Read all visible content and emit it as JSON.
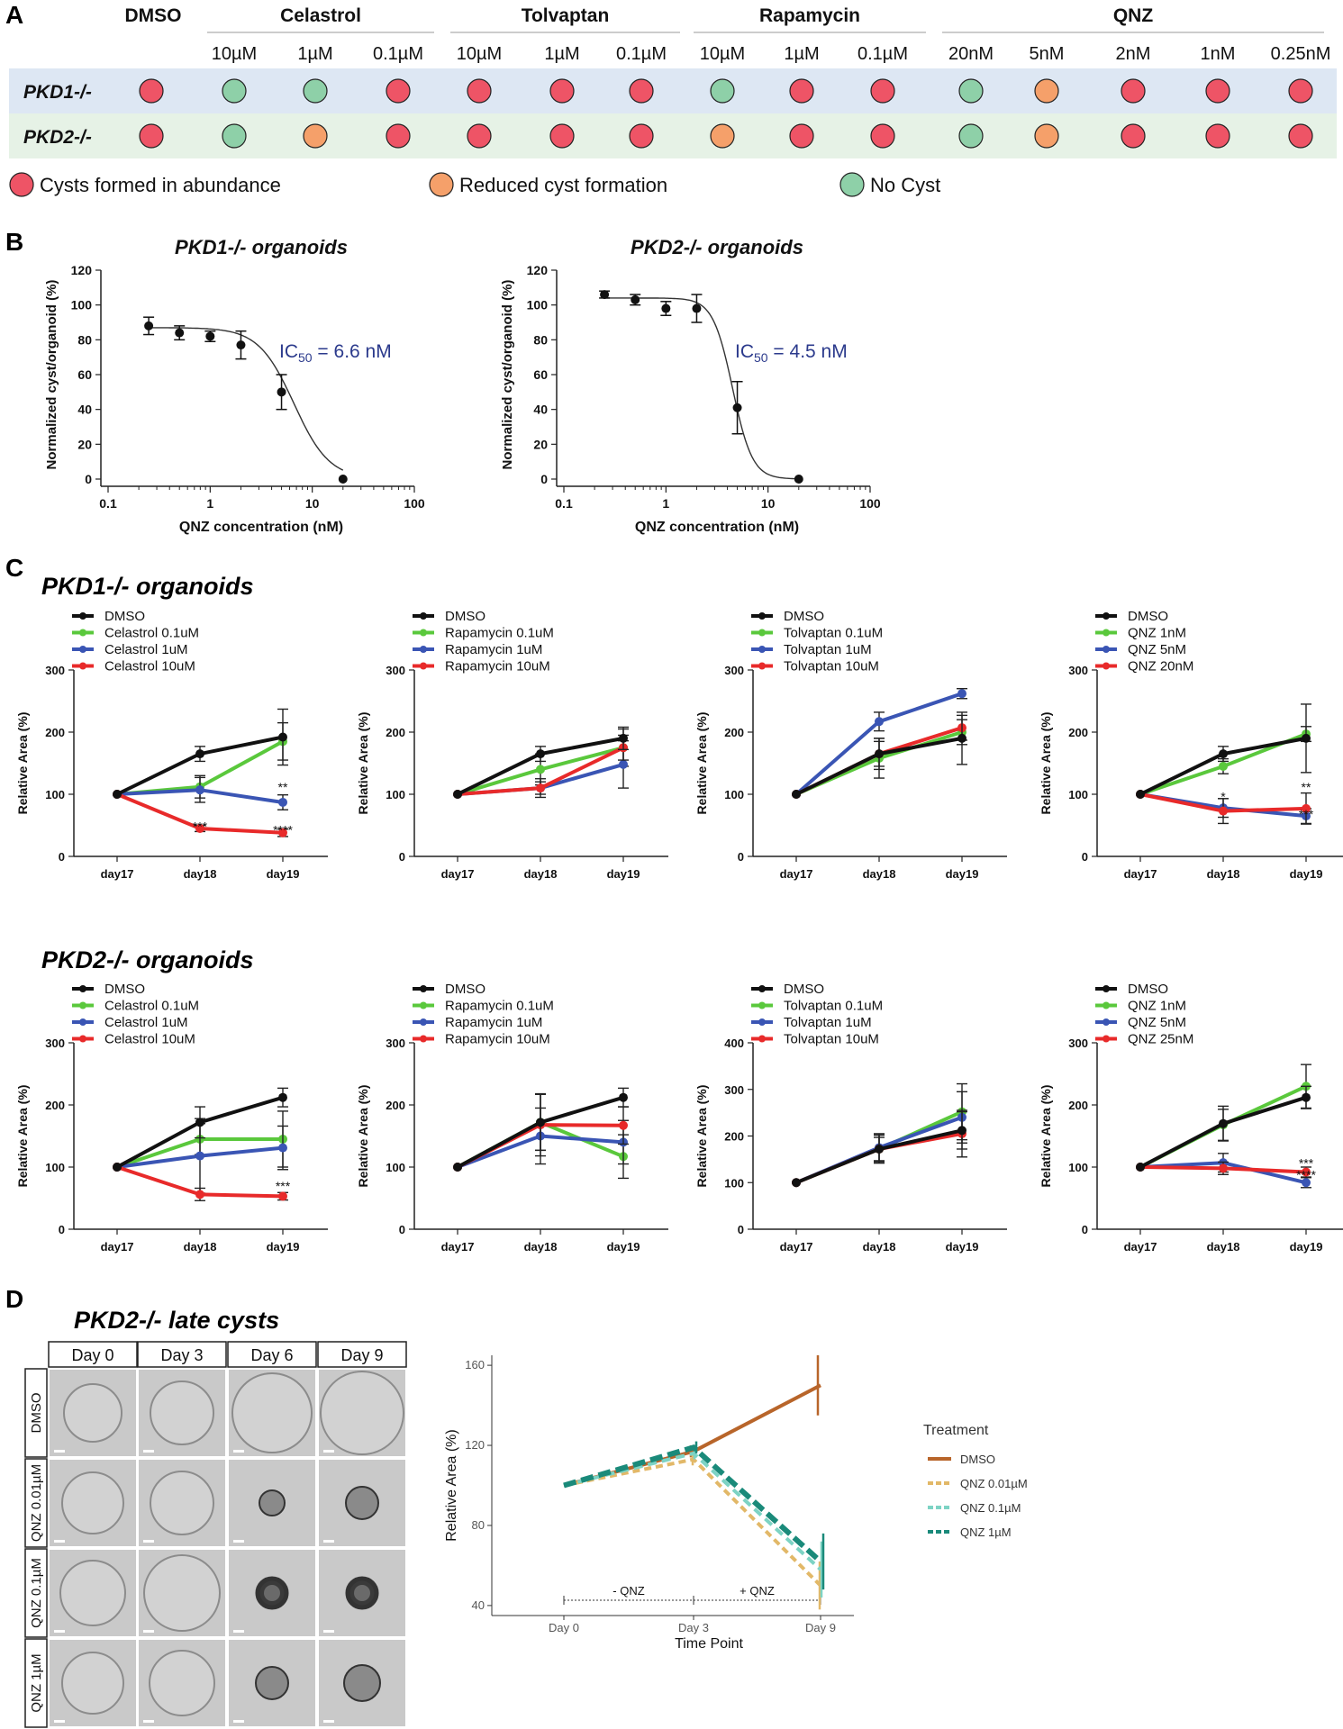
{
  "panels": {
    "A": "A",
    "B": "B",
    "C": "C",
    "D": "D"
  },
  "screen": {
    "dmso_header": "DMSO",
    "drugs": [
      {
        "name": "Celastrol",
        "doses": [
          "10µM",
          "1µM",
          "0.1µM"
        ]
      },
      {
        "name": "Tolvaptan",
        "doses": [
          "10µM",
          "1µM",
          "0.1µM"
        ]
      },
      {
        "name": "Rapamycin",
        "doses": [
          "10µM",
          "1µM",
          "0.1µM"
        ]
      },
      {
        "name": "QNZ",
        "doses": [
          "20nM",
          "5nM",
          "2nM",
          "1nM",
          "0.25nM"
        ]
      }
    ],
    "rows": [
      {
        "label": "PKD1-/-",
        "bg": "#dde7f3",
        "outcomes": [
          "cyst",
          "none",
          "none",
          "cyst",
          "cyst",
          "cyst",
          "cyst",
          "none",
          "cyst",
          "cyst",
          "none",
          "reduced",
          "cyst",
          "cyst",
          "cyst"
        ]
      },
      {
        "label": "PKD2-/-",
        "bg": "#e6f2e6",
        "outcomes": [
          "cyst",
          "none",
          "reduced",
          "cyst",
          "cyst",
          "cyst",
          "cyst",
          "reduced",
          "cyst",
          "cyst",
          "none",
          "reduced",
          "cyst",
          "cyst",
          "cyst"
        ]
      }
    ],
    "outcome_colors": {
      "cyst": "#ee5466",
      "reduced": "#f5a06a",
      "none": "#8ed0a8"
    },
    "legend": [
      {
        "key": "cyst",
        "text": "Cysts formed in abundance"
      },
      {
        "key": "reduced",
        "text": "Reduced cyst formation"
      },
      {
        "key": "none",
        "text": "No Cyst"
      }
    ]
  },
  "ic50": [
    {
      "title": "PKD1-/- organoids",
      "ylabel": "Normalized cyst/organoid (%)",
      "xlabel": "QNZ concentration (nM)",
      "x": [
        0.25,
        0.5,
        1,
        2,
        5,
        20
      ],
      "y": [
        88,
        84,
        82,
        77,
        50,
        0
      ],
      "err": [
        5,
        4,
        3,
        8,
        10,
        0
      ],
      "ic50_value": "6.6",
      "ic50_prefix": "IC",
      "ic50_sub": "50",
      "ic50_suffix": " = 6.6 nM",
      "ytop": 87,
      "ic50_nm": 6.6,
      "hill": 2.5,
      "yticks": [
        "0",
        "20",
        "40",
        "60",
        "80",
        "100",
        "120"
      ],
      "xticks": [
        "0.1",
        "1",
        "10",
        "100"
      ]
    },
    {
      "title": "PKD2-/- organoids",
      "ylabel": "Normalized cyst/organoid (%)",
      "xlabel": "QNZ concentration (nM)",
      "x": [
        0.25,
        0.5,
        1,
        2,
        5,
        20
      ],
      "y": [
        106,
        103,
        98,
        98,
        41,
        0
      ],
      "err": [
        2,
        3,
        4,
        8,
        15,
        0
      ],
      "ic50_value": "4.5",
      "ic50_prefix": "IC",
      "ic50_sub": "50",
      "ic50_suffix": " = 4.5 nM",
      "ytop": 104,
      "ic50_nm": 4.5,
      "hill": 4.5,
      "yticks": [
        "0",
        "20",
        "40",
        "60",
        "80",
        "100",
        "120"
      ],
      "xticks": [
        "0.1",
        "1",
        "10",
        "100"
      ]
    }
  ],
  "growth": {
    "pkd1_title": "PKD1-/- organoids",
    "pkd2_title": "PKD2-/- organoids",
    "ylabel": "Relative Area (%)",
    "series_colors": [
      "#111111",
      "#5ac83c",
      "#3a55b4",
      "#e82a2a"
    ]
  },
  "chart_data": [
    {
      "type": "line",
      "group": "PKD1-/-",
      "categories": [
        "day17",
        "day18",
        "day19"
      ],
      "ylim": [
        0,
        300
      ],
      "yticks": [
        "0",
        "100",
        "200",
        "300"
      ],
      "series": [
        {
          "name": "DMSO",
          "values": [
            100,
            165,
            192
          ],
          "err": [
            0,
            12,
            45
          ]
        },
        {
          "name": "Celastrol 0.1uM",
          "values": [
            100,
            112,
            185
          ],
          "err": [
            0,
            18,
            30
          ]
        },
        {
          "name": "Celastrol 1uM",
          "values": [
            100,
            107,
            87
          ],
          "err": [
            0,
            20,
            12
          ]
        },
        {
          "name": "Celastrol 10uM",
          "values": [
            100,
            45,
            38
          ],
          "err": [
            0,
            5,
            6
          ]
        }
      ],
      "annotations": [
        {
          "x": "day18",
          "y": 47,
          "text": "***"
        },
        {
          "x": "day19",
          "y": 41,
          "text": "****"
        },
        {
          "x": "day19",
          "y": 110,
          "text": "**"
        }
      ]
    },
    {
      "type": "line",
      "group": "PKD1-/-",
      "categories": [
        "day17",
        "day18",
        "day19"
      ],
      "ylim": [
        0,
        300
      ],
      "yticks": [
        "0",
        "100",
        "200",
        "300"
      ],
      "series": [
        {
          "name": "DMSO",
          "values": [
            100,
            165,
            190
          ],
          "err": [
            0,
            12,
            18
          ]
        },
        {
          "name": "Rapamycin 0.1uM",
          "values": [
            100,
            140,
            175
          ],
          "err": [
            0,
            25,
            30
          ]
        },
        {
          "name": "Rapamycin 1uM",
          "values": [
            100,
            110,
            148
          ],
          "err": [
            0,
            15,
            38
          ]
        },
        {
          "name": "Rapamycin 10uM",
          "values": [
            100,
            110,
            175
          ],
          "err": [
            0,
            10,
            20
          ]
        }
      ],
      "annotations": []
    },
    {
      "type": "line",
      "group": "PKD1-/-",
      "categories": [
        "day17",
        "day18",
        "day19"
      ],
      "ylim": [
        0,
        300
      ],
      "yticks": [
        "0",
        "100",
        "200",
        "300"
      ],
      "series": [
        {
          "name": "DMSO",
          "values": [
            100,
            165,
            190
          ],
          "err": [
            0,
            25,
            42
          ]
        },
        {
          "name": "Tolvaptan 0.1uM",
          "values": [
            100,
            158,
            200
          ],
          "err": [
            0,
            32,
            20
          ]
        },
        {
          "name": "Tolvaptan 1uM",
          "values": [
            100,
            217,
            262
          ],
          "err": [
            0,
            15,
            8
          ]
        },
        {
          "name": "Tolvaptan 10uM",
          "values": [
            100,
            165,
            207
          ],
          "err": [
            0,
            20,
            20
          ]
        }
      ],
      "annotations": []
    },
    {
      "type": "line",
      "group": "PKD1-/-",
      "categories": [
        "day17",
        "day18",
        "day19"
      ],
      "ylim": [
        0,
        300
      ],
      "yticks": [
        "0",
        "100",
        "200",
        "300"
      ],
      "series": [
        {
          "name": "DMSO",
          "values": [
            100,
            165,
            190
          ],
          "err": [
            0,
            12,
            55
          ]
        },
        {
          "name": "QNZ 1nM",
          "values": [
            100,
            145,
            197
          ],
          "err": [
            0,
            12,
            12
          ]
        },
        {
          "name": "QNZ 5nM",
          "values": [
            100,
            78,
            65
          ],
          "err": [
            0,
            15,
            12
          ]
        },
        {
          "name": "QNZ 20nM",
          "values": [
            100,
            73,
            77
          ],
          "err": [
            0,
            20,
            25
          ]
        }
      ],
      "annotations": [
        {
          "x": "day18",
          "y": 95,
          "text": "*"
        },
        {
          "x": "day19",
          "y": 110,
          "text": "**"
        },
        {
          "x": "day19",
          "y": 67,
          "text": "***"
        }
      ]
    },
    {
      "type": "line",
      "group": "PKD2-/-",
      "categories": [
        "day17",
        "day18",
        "day19"
      ],
      "ylim": [
        0,
        300
      ],
      "yticks": [
        "0",
        "100",
        "200",
        "300"
      ],
      "series": [
        {
          "name": "DMSO",
          "values": [
            100,
            172,
            212
          ],
          "err": [
            0,
            25,
            15
          ]
        },
        {
          "name": "Celastrol 0.1uM",
          "values": [
            100,
            145,
            145
          ],
          "err": [
            0,
            25,
            45
          ]
        },
        {
          "name": "Celastrol 1uM",
          "values": [
            100,
            118,
            131
          ],
          "err": [
            0,
            60,
            35
          ]
        },
        {
          "name": "Celastrol 10uM",
          "values": [
            100,
            56,
            53
          ],
          "err": [
            0,
            10,
            6
          ]
        }
      ],
      "annotations": [
        {
          "x": "day19",
          "y": 68,
          "text": "***"
        }
      ]
    },
    {
      "type": "line",
      "group": "PKD2-/-",
      "categories": [
        "day17",
        "day18",
        "day19"
      ],
      "ylim": [
        0,
        300
      ],
      "yticks": [
        "0",
        "100",
        "200",
        "300"
      ],
      "series": [
        {
          "name": "DMSO",
          "values": [
            100,
            172,
            212
          ],
          "err": [
            0,
            45,
            15
          ]
        },
        {
          "name": "Rapamycin 0.1uM",
          "values": [
            100,
            172,
            117
          ],
          "err": [
            0,
            45,
            35
          ]
        },
        {
          "name": "Rapamycin 1uM",
          "values": [
            100,
            150,
            140
          ],
          "err": [
            0,
            45,
            35
          ]
        },
        {
          "name": "Rapamycin 10uM",
          "values": [
            100,
            168,
            167
          ],
          "err": [
            0,
            50,
            30
          ]
        }
      ],
      "annotations": []
    },
    {
      "type": "line",
      "group": "PKD2-/-",
      "categories": [
        "day17",
        "day18",
        "day19"
      ],
      "ylim": [
        0,
        400
      ],
      "yticks": [
        "0",
        "100",
        "200",
        "300",
        "400"
      ],
      "series": [
        {
          "name": "DMSO",
          "values": [
            100,
            172,
            212
          ],
          "err": [
            0,
            25,
            40
          ]
        },
        {
          "name": "Tolvaptan 0.1uM",
          "values": [
            100,
            172,
            252
          ],
          "err": [
            0,
            30,
            60
          ]
        },
        {
          "name": "Tolvaptan 1uM",
          "values": [
            100,
            175,
            240
          ],
          "err": [
            0,
            30,
            55
          ]
        },
        {
          "name": "Tolvaptan 10uM",
          "values": [
            100,
            172,
            205
          ],
          "err": [
            0,
            30,
            50
          ]
        }
      ],
      "annotations": []
    },
    {
      "type": "line",
      "group": "PKD2-/-",
      "categories": [
        "day17",
        "day18",
        "day19"
      ],
      "ylim": [
        0,
        300
      ],
      "yticks": [
        "0",
        "100",
        "200",
        "300"
      ],
      "series": [
        {
          "name": "DMSO",
          "values": [
            100,
            170,
            212
          ],
          "err": [
            0,
            28,
            18
          ]
        },
        {
          "name": "QNZ 1nM",
          "values": [
            100,
            168,
            230
          ],
          "err": [
            0,
            25,
            35
          ]
        },
        {
          "name": "QNZ 5nM",
          "values": [
            100,
            107,
            75
          ],
          "err": [
            0,
            15,
            8
          ]
        },
        {
          "name": "QNZ 25nM",
          "values": [
            100,
            98,
            92
          ],
          "err": [
            0,
            10,
            8
          ]
        }
      ],
      "annotations": [
        {
          "x": "day19",
          "y": 105,
          "text": "***"
        },
        {
          "x": "day19",
          "y": 86,
          "text": "****"
        }
      ]
    },
    {
      "type": "line",
      "group": "PKD2-/- late cysts",
      "categories": [
        "Day 0",
        "Day 3",
        "Day 9"
      ],
      "ylim": [
        35,
        165
      ],
      "yticks": [
        "40",
        "80",
        "120",
        "160"
      ],
      "xlabel": "Time Point",
      "ylabel": "Relative Area (%)",
      "legend_title": "Treatment",
      "series": [
        {
          "name": "DMSO",
          "values": [
            100,
            117,
            150
          ],
          "err": [
            0,
            3,
            15
          ],
          "color": "#b8652a"
        },
        {
          "name": "QNZ 0.01µM",
          "values": [
            100,
            113,
            50
          ],
          "err": [
            0,
            3,
            12
          ],
          "color": "#e2b868"
        },
        {
          "name": "QNZ 0.1µM",
          "values": [
            100,
            116,
            58
          ],
          "err": [
            0,
            3,
            14
          ],
          "color": "#7dd3c4"
        },
        {
          "name": "QNZ 1µM",
          "values": [
            100,
            119,
            62
          ],
          "err": [
            0,
            3,
            14
          ],
          "color": "#1a8a7a"
        }
      ],
      "phases": [
        "- QNZ",
        "+ QNZ"
      ]
    }
  ],
  "late_cysts": {
    "title": "PKD2-/- late cysts",
    "days": [
      "Day 0",
      "Day 3",
      "Day 6",
      "Day 9"
    ],
    "conditions": [
      "DMSO",
      "QNZ 0.01µM",
      "QNZ 0.1µM",
      "QNZ 1µM"
    ]
  }
}
